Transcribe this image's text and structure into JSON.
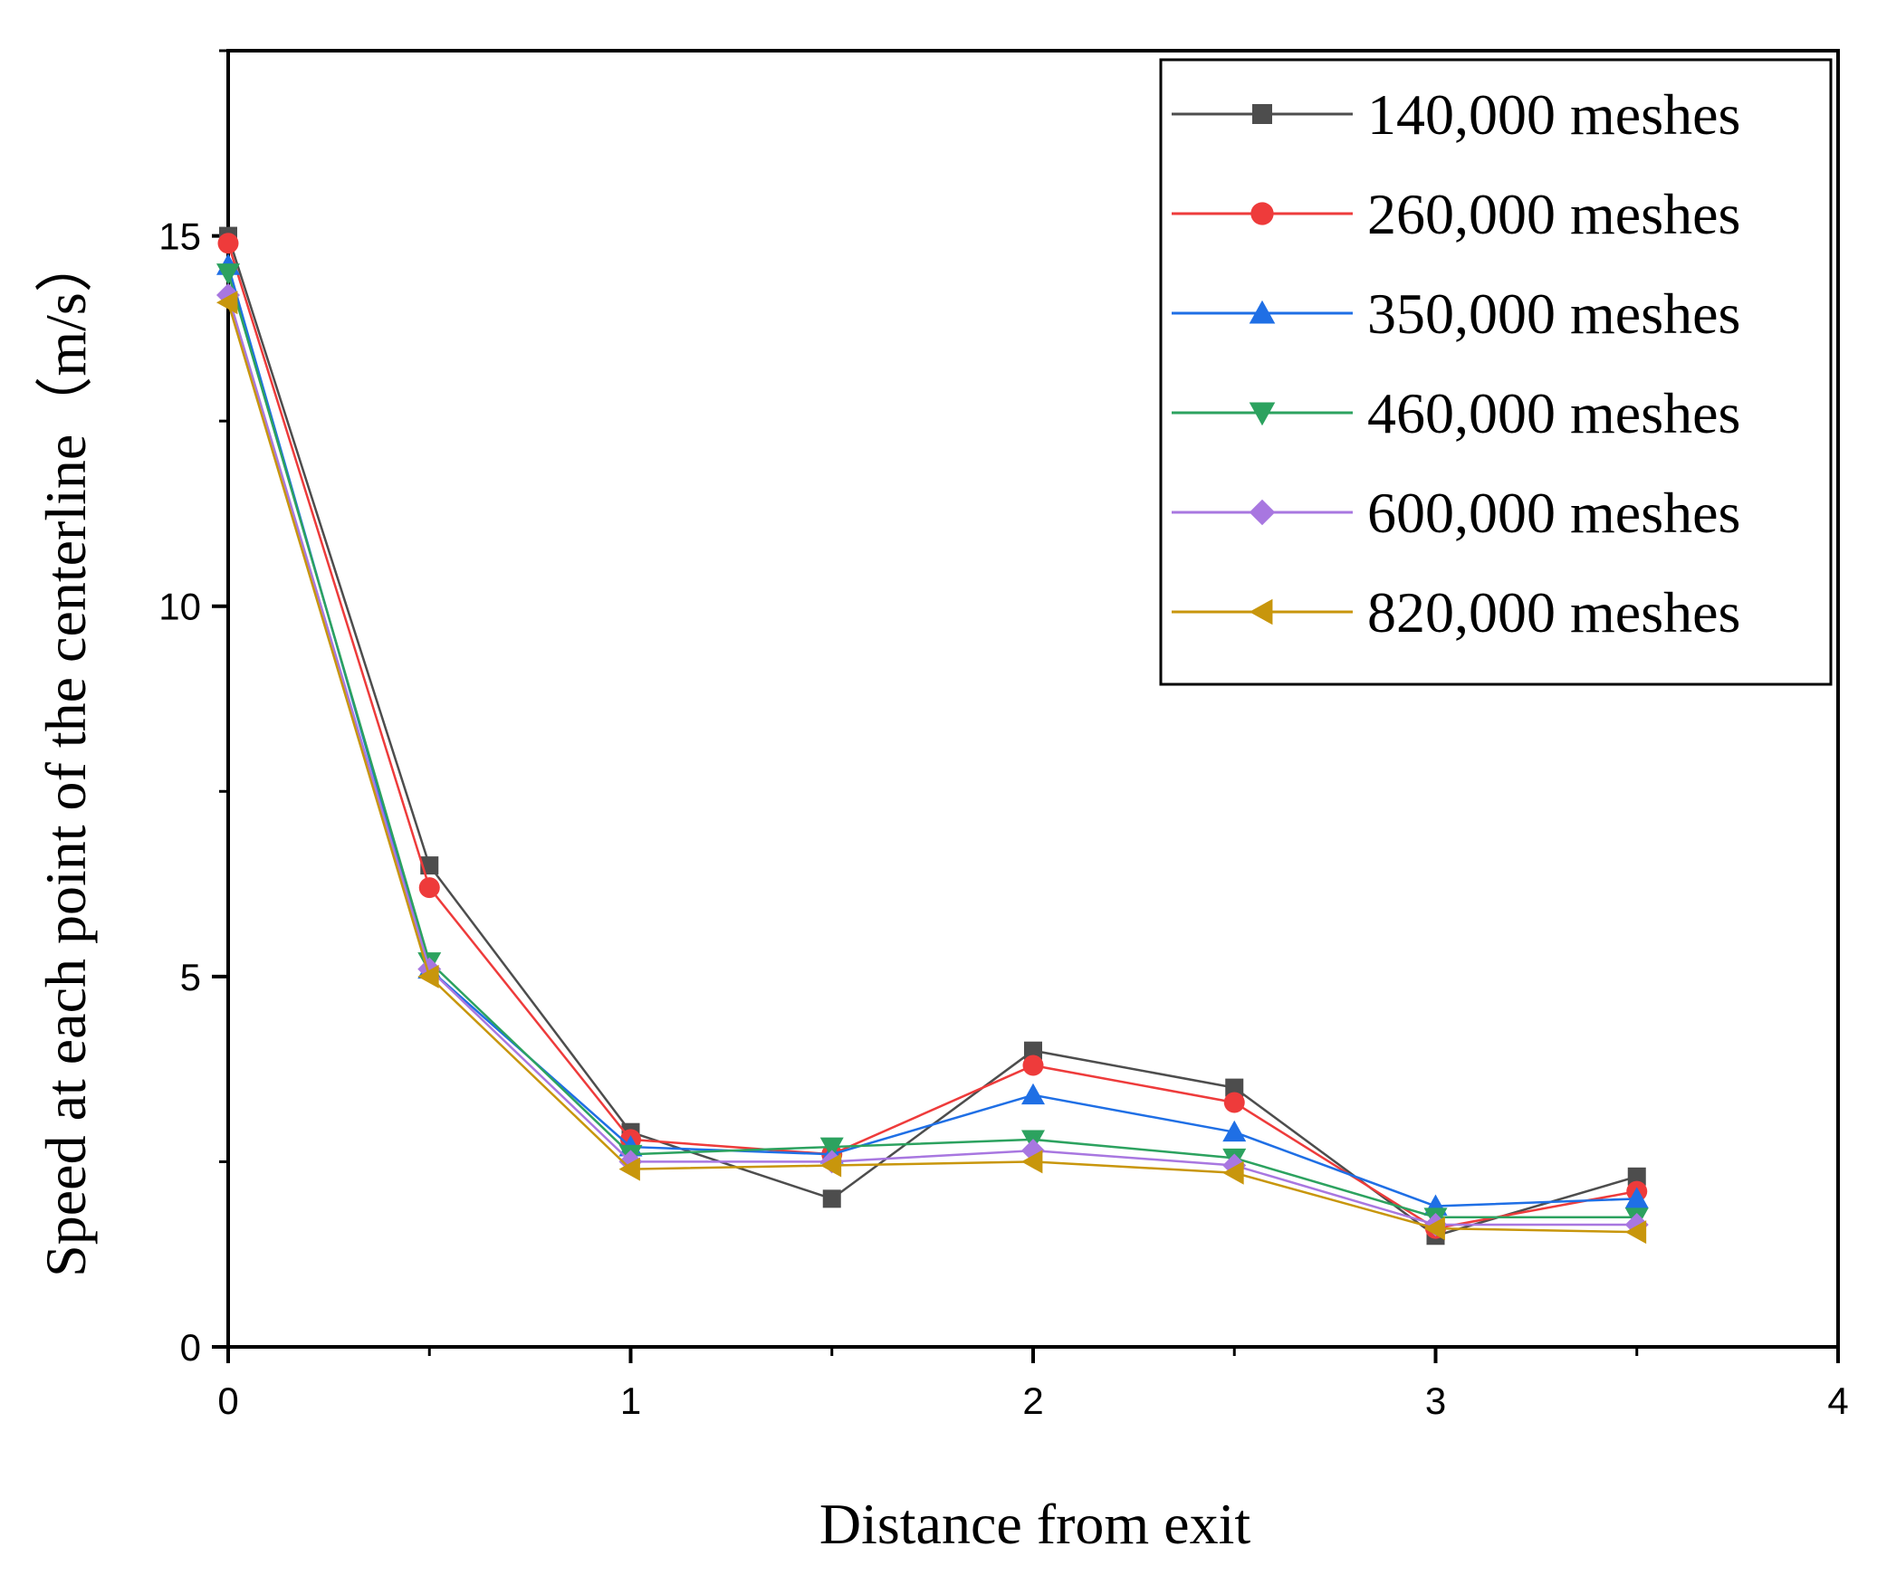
{
  "chart_data": {
    "type": "line",
    "title": "",
    "xlabel": "Distance from exit",
    "ylabel": "Speed at each point of the centerline（m/s）",
    "xlim": [
      0,
      4
    ],
    "ylim": [
      0,
      17.5
    ],
    "xticks": [
      0,
      1,
      2,
      3,
      4
    ],
    "xtick_labels": [
      "0",
      "1",
      "2",
      "3",
      "4"
    ],
    "yticks": [
      0,
      5,
      10,
      15
    ],
    "ytick_labels": [
      "0",
      "5",
      "10",
      "15"
    ],
    "grid": false,
    "legend_position": "top-right",
    "x": [
      0,
      0.5,
      1,
      1.5,
      2,
      2.5,
      3,
      3.5
    ],
    "series": [
      {
        "name": "140,000 meshes",
        "color": "#4d4d4d",
        "marker": "square",
        "values": [
          15.0,
          6.5,
          2.9,
          2.0,
          4.0,
          3.5,
          1.5,
          2.3
        ]
      },
      {
        "name": "260,000 meshes",
        "color": "#ee3b3b",
        "marker": "circle",
        "values": [
          14.9,
          6.2,
          2.8,
          2.6,
          3.8,
          3.3,
          1.6,
          2.1
        ]
      },
      {
        "name": "350,000 meshes",
        "color": "#1f6fe5",
        "marker": "triangle-up",
        "values": [
          14.6,
          5.1,
          2.7,
          2.6,
          3.4,
          2.9,
          1.9,
          2.0
        ]
      },
      {
        "name": "460,000 meshes",
        "color": "#2ca25f",
        "marker": "triangle-down",
        "values": [
          14.5,
          5.2,
          2.6,
          2.7,
          2.8,
          2.55,
          1.75,
          1.75
        ]
      },
      {
        "name": "600,000 meshes",
        "color": "#a877e0",
        "marker": "diamond",
        "values": [
          14.2,
          5.1,
          2.5,
          2.5,
          2.65,
          2.45,
          1.65,
          1.65
        ]
      },
      {
        "name": "820,000 meshes",
        "color": "#c8960c",
        "marker": "triangle-left",
        "values": [
          14.1,
          5.0,
          2.4,
          2.45,
          2.5,
          2.35,
          1.6,
          1.55
        ]
      }
    ]
  }
}
